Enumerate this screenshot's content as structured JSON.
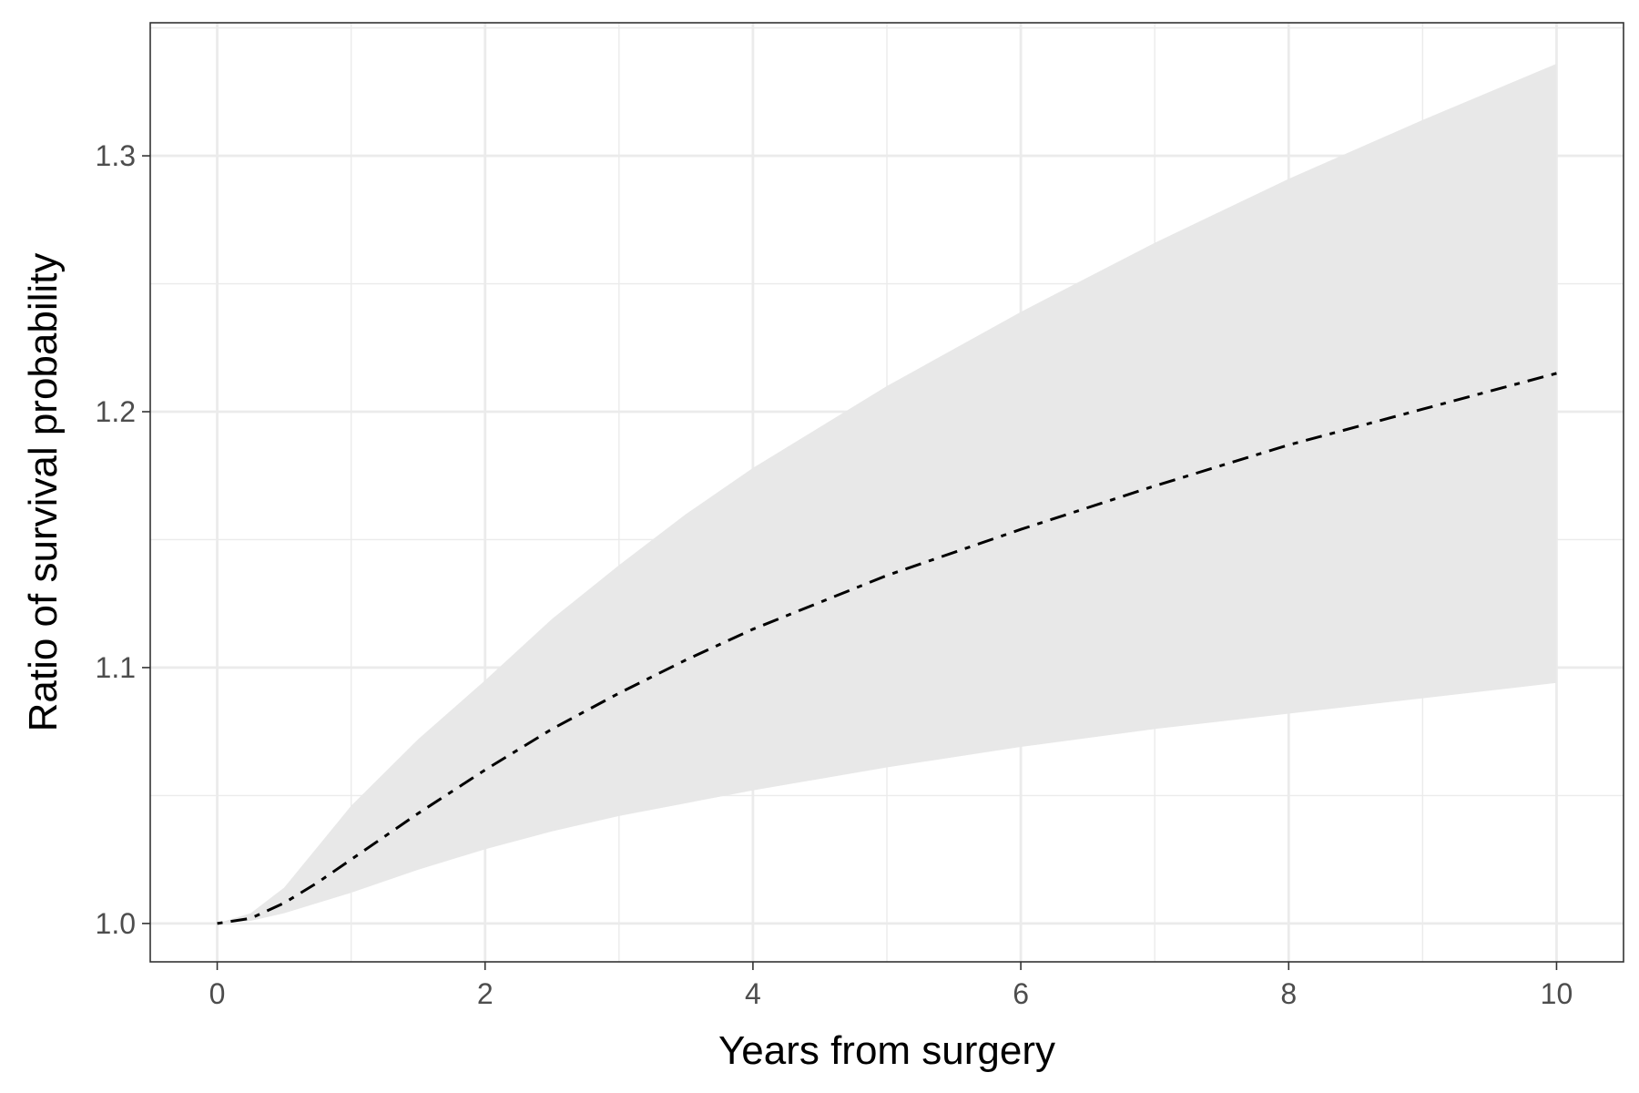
{
  "chart_data": {
    "type": "line",
    "title": "",
    "xlabel": "Years from surgery",
    "ylabel": "Ratio of survival probability",
    "xlim": [
      -0.5,
      10.5
    ],
    "ylim": [
      0.985,
      1.352
    ],
    "x_ticks": [
      0,
      2,
      4,
      6,
      8,
      10
    ],
    "x_tick_labels": [
      "0",
      "2",
      "4",
      "6",
      "8",
      "10"
    ],
    "x_minor_ticks": [
      1,
      3,
      5,
      7,
      9
    ],
    "y_ticks": [
      1.0,
      1.1,
      1.2,
      1.3
    ],
    "y_tick_labels": [
      "1.0",
      "1.1",
      "1.2",
      "1.3"
    ],
    "y_minor_ticks": [
      1.05,
      1.15,
      1.25,
      1.35
    ],
    "grid": true,
    "legend": "none",
    "colors": {
      "line": "#000000",
      "ribbon": "#e8e8e8",
      "grid": "#ebebeb",
      "panel_border": "#333333",
      "tick_label": "#4d4d4d"
    },
    "series": [
      {
        "line_style": "dotdash",
        "x": [
          0,
          0.25,
          0.5,
          0.75,
          1,
          1.5,
          2,
          2.5,
          3,
          3.5,
          4,
          5,
          6,
          7,
          8,
          9,
          10
        ],
        "y": [
          1.0,
          1.002,
          1.008,
          1.016,
          1.025,
          1.043,
          1.06,
          1.076,
          1.09,
          1.103,
          1.115,
          1.136,
          1.154,
          1.171,
          1.187,
          1.201,
          1.215
        ],
        "lower": [
          1.0,
          1.001,
          1.004,
          1.008,
          1.012,
          1.021,
          1.029,
          1.036,
          1.042,
          1.047,
          1.052,
          1.061,
          1.069,
          1.076,
          1.082,
          1.088,
          1.094
        ],
        "upper": [
          1.0,
          1.004,
          1.014,
          1.03,
          1.046,
          1.072,
          1.095,
          1.119,
          1.14,
          1.16,
          1.178,
          1.21,
          1.239,
          1.266,
          1.291,
          1.314,
          1.336
        ]
      }
    ]
  }
}
